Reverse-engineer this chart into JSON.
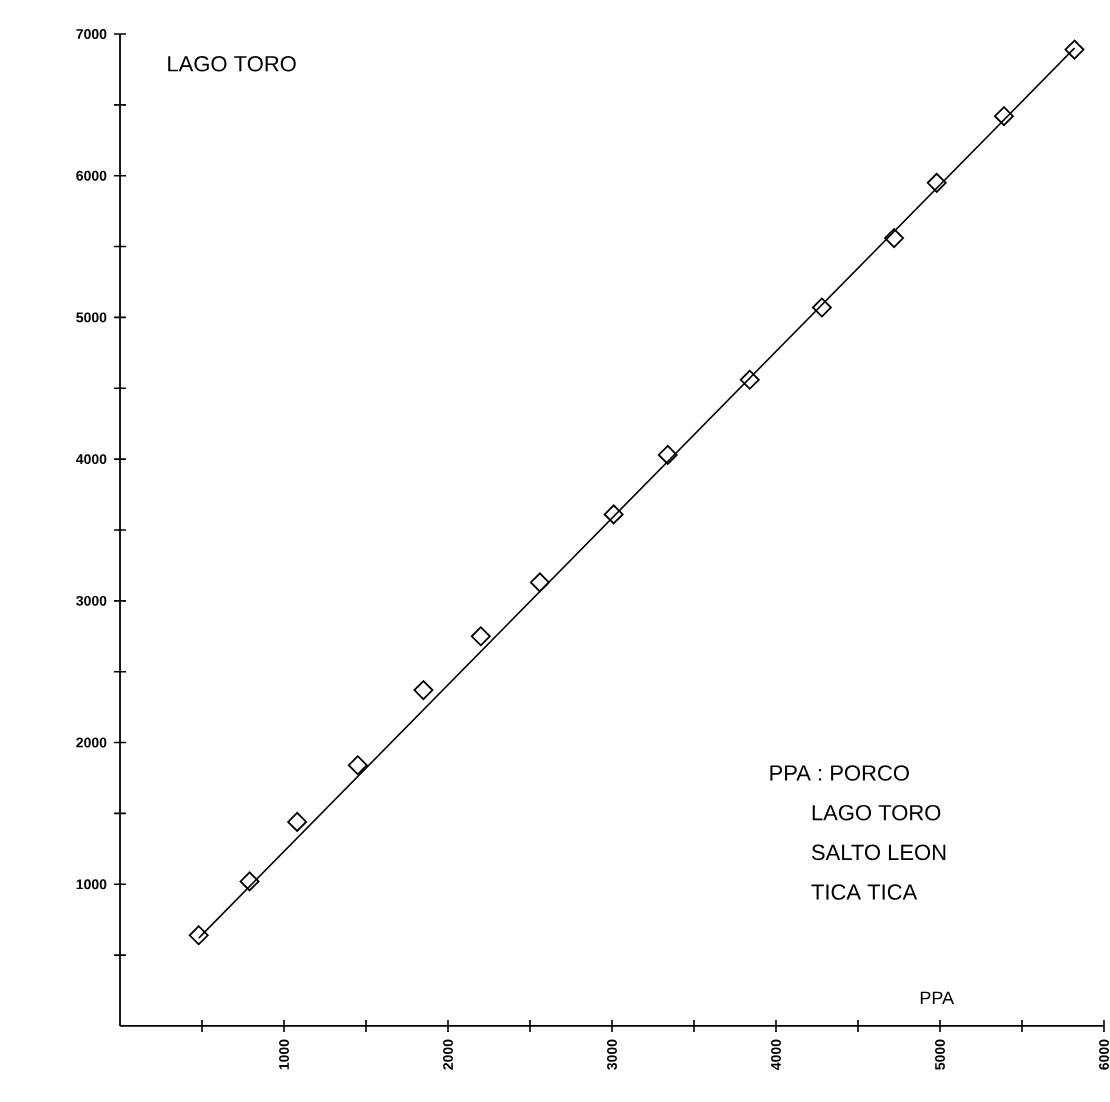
{
  "chart_data": {
    "type": "scatter",
    "title": "LAGO TORO",
    "xlabel": "PPA",
    "annotations": [
      "PPA : PORCO",
      "LAGO TORO",
      "SALTO LEON",
      "TICA TICA"
    ],
    "xlim": [
      0,
      6000
    ],
    "ylim": [
      0,
      7000
    ],
    "xticks": [
      {
        "value": 500,
        "label": null
      },
      1000,
      {
        "value": 1500,
        "label": null
      },
      2000,
      {
        "value": 2500,
        "label": null
      },
      3000,
      {
        "value": 3500,
        "label": null
      },
      4000,
      {
        "value": 4500,
        "label": null
      },
      5000,
      {
        "value": 5500,
        "label": null
      },
      6000
    ],
    "yticks": [
      {
        "value": 500,
        "label": null
      },
      1000,
      {
        "value": 1500,
        "label": null
      },
      2000,
      {
        "value": 2500,
        "label": null
      },
      3000,
      {
        "value": 3500,
        "label": null
      },
      4000,
      {
        "value": 4500,
        "label": null
      },
      5000,
      {
        "value": 5500,
        "label": null
      },
      6000,
      {
        "value": 6500,
        "label": null
      },
      7000
    ],
    "series": [
      {
        "marker": "diamond",
        "color": "#000000",
        "x": [
          480,
          790,
          1080,
          1450,
          1850,
          2200,
          2560,
          3010,
          3340,
          3840,
          4280,
          4720,
          4980,
          5390,
          5820
        ],
        "values": [
          640,
          1020,
          1440,
          1840,
          2370,
          2750,
          3130,
          3610,
          4030,
          4560,
          5070,
          5560,
          5950,
          6420,
          6890
        ]
      },
      {
        "type": "line",
        "marker": "none",
        "color": "#000000",
        "x": [
          480,
          5820
        ],
        "values": [
          620,
          6900
        ]
      }
    ]
  }
}
